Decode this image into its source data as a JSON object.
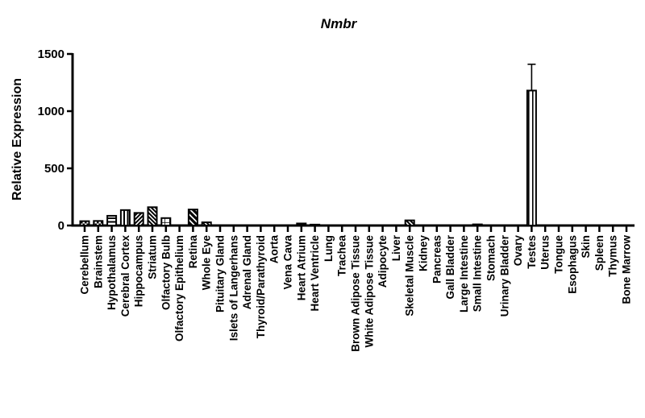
{
  "chart_data": {
    "type": "bar",
    "title": "Nmbr",
    "xlabel": "",
    "ylabel": "Relative Expression",
    "ylim": [
      0,
      1500
    ],
    "yticks": [
      0,
      500,
      1000,
      1500
    ],
    "grid": false,
    "legend": "none",
    "bar_color": "#000000",
    "background_color": "#ffffff",
    "categories": [
      "Cerebellum",
      "Brainstem",
      "Hypothalamus",
      "Cerebral Cortex",
      "Hippocampus",
      "Striatum",
      "Olfactory Bulb",
      "Olfactory Epithelium",
      "Retina",
      "Whole Eye",
      "Pituitary Gland",
      "Islets of Langerhans",
      "Adrenal Gland",
      "Thyroid/Parathyroid",
      "Aorta",
      "Vena Cava",
      "Heart Atrium",
      "Heart Ventricle",
      "Lung",
      "Trachea",
      "Brown Adipose Tissue",
      "White Adipose Tissue",
      "Adipocyte",
      "Liver",
      "Skeletal Muscle",
      "Kidney",
      "Pancreas",
      "Gall Bladder",
      "Large Intestine",
      "Small Intestine",
      "Stomach",
      "Urinary Bladder",
      "Ovary",
      "Testes",
      "Uterus",
      "Tongue",
      "Esophagus",
      "Skin",
      "Spleen",
      "Thymus",
      "Bone Marrow"
    ],
    "values": [
      38,
      40,
      85,
      135,
      110,
      160,
      65,
      0,
      140,
      28,
      0,
      0,
      0,
      0,
      0,
      0,
      18,
      8,
      0,
      0,
      0,
      0,
      0,
      0,
      45,
      0,
      0,
      0,
      0,
      10,
      0,
      0,
      0,
      1180,
      0,
      0,
      0,
      0,
      0,
      0,
      0
    ],
    "errors": [
      0,
      0,
      0,
      0,
      0,
      0,
      0,
      0,
      0,
      0,
      0,
      0,
      0,
      0,
      0,
      0,
      0,
      0,
      0,
      0,
      0,
      0,
      0,
      0,
      0,
      0,
      0,
      0,
      0,
      0,
      0,
      0,
      0,
      230,
      0,
      0,
      0,
      0,
      0,
      0,
      0
    ],
    "patterns": [
      "checker",
      "checker",
      "hlines",
      "vlines",
      "diag-up",
      "diag-down",
      "grid",
      "none",
      "diag-down-thick",
      "diag-down",
      "none",
      "none",
      "none",
      "none",
      "none",
      "none",
      "solid",
      "solid",
      "none",
      "none",
      "none",
      "none",
      "none",
      "none",
      "diag-down",
      "none",
      "none",
      "none",
      "none",
      "solid",
      "none",
      "none",
      "none",
      "vlines-wide",
      "none",
      "none",
      "none",
      "none",
      "none",
      "none",
      "none"
    ]
  }
}
